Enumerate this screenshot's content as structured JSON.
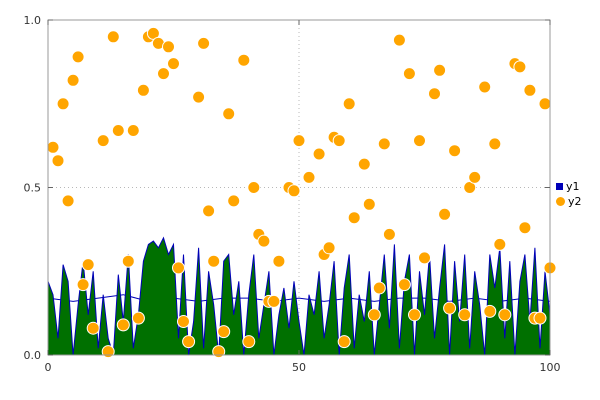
{
  "chart_data": {
    "type": "area",
    "title": "",
    "xlabel": "",
    "ylabel": "",
    "xlim": [
      0,
      100
    ],
    "ylim": [
      0.0,
      1.0
    ],
    "xticks": [
      0,
      50,
      100
    ],
    "xtick_labels": [
      "0",
      "50",
      "100"
    ],
    "yticks": [
      0.0,
      0.5,
      1.0
    ],
    "ytick_labels": [
      "0.0",
      "0.5",
      "1.0"
    ],
    "grid": true,
    "legend_position": "right",
    "colors": {
      "grid": "#b8b8b8",
      "border": "#999999",
      "tick_text": "#333333",
      "area_fill": "#007000",
      "area_stroke": "#0000b8",
      "line": "#0000b8",
      "scatter": "#FFA500"
    },
    "series": [
      {
        "name": "y1",
        "kind": "area",
        "fill": "#007000",
        "stroke": "#0000b8",
        "x_start": 0,
        "x_step": 1,
        "values": [
          0.22,
          0.18,
          0.05,
          0.27,
          0.22,
          0.0,
          0.15,
          0.28,
          0.12,
          0.25,
          0.02,
          0.18,
          0.05,
          0.0,
          0.24,
          0.1,
          0.3,
          0.02,
          0.12,
          0.28,
          0.33,
          0.34,
          0.32,
          0.35,
          0.3,
          0.33,
          0.05,
          0.3,
          0.0,
          0.1,
          0.32,
          0.02,
          0.25,
          0.15,
          0.0,
          0.28,
          0.3,
          0.12,
          0.22,
          0.0,
          0.18,
          0.3,
          0.05,
          0.15,
          0.25,
          0.0,
          0.12,
          0.2,
          0.08,
          0.22,
          0.1,
          0.0,
          0.18,
          0.12,
          0.25,
          0.05,
          0.15,
          0.28,
          0.0,
          0.2,
          0.3,
          0.02,
          0.18,
          0.1,
          0.25,
          0.0,
          0.15,
          0.3,
          0.08,
          0.33,
          0.02,
          0.22,
          0.3,
          0.0,
          0.25,
          0.12,
          0.3,
          0.05,
          0.2,
          0.33,
          0.0,
          0.28,
          0.1,
          0.3,
          0.02,
          0.25,
          0.15,
          0.0,
          0.3,
          0.2,
          0.32,
          0.05,
          0.28,
          0.0,
          0.22,
          0.3,
          0.1,
          0.32,
          0.02,
          0.25,
          0.12
        ],
        "line_x_step": 5,
        "line_values": [
          0.17,
          0.16,
          0.17,
          0.18,
          0.16,
          0.17,
          0.16,
          0.17,
          0.17,
          0.16,
          0.17,
          0.16,
          0.17,
          0.16,
          0.17,
          0.17,
          0.16,
          0.17,
          0.16,
          0.17,
          0.16
        ]
      },
      {
        "name": "y2",
        "kind": "scatter",
        "color": "#FFA500",
        "marker": "circle",
        "marker_size": 6,
        "points": [
          [
            1,
            0.62
          ],
          [
            2,
            0.58
          ],
          [
            3,
            0.75
          ],
          [
            4,
            0.46
          ],
          [
            5,
            0.82
          ],
          [
            6,
            0.89
          ],
          [
            7,
            0.21
          ],
          [
            8,
            0.27
          ],
          [
            9,
            0.08
          ],
          [
            11,
            0.64
          ],
          [
            12,
            0.01
          ],
          [
            13,
            0.95
          ],
          [
            14,
            0.67
          ],
          [
            15,
            0.09
          ],
          [
            16,
            0.28
          ],
          [
            17,
            0.67
          ],
          [
            18,
            0.11
          ],
          [
            19,
            0.79
          ],
          [
            20,
            0.95
          ],
          [
            21,
            0.96
          ],
          [
            22,
            0.93
          ],
          [
            23,
            0.84
          ],
          [
            24,
            0.92
          ],
          [
            25,
            0.87
          ],
          [
            26,
            0.26
          ],
          [
            27,
            0.1
          ],
          [
            28,
            0.04
          ],
          [
            30,
            0.77
          ],
          [
            31,
            0.93
          ],
          [
            32,
            0.43
          ],
          [
            33,
            0.28
          ],
          [
            34,
            0.01
          ],
          [
            35,
            0.07
          ],
          [
            36,
            0.72
          ],
          [
            37,
            0.46
          ],
          [
            39,
            0.88
          ],
          [
            40,
            0.04
          ],
          [
            41,
            0.5
          ],
          [
            42,
            0.36
          ],
          [
            43,
            0.34
          ],
          [
            44,
            0.16
          ],
          [
            45,
            0.16
          ],
          [
            46,
            0.28
          ],
          [
            48,
            0.5
          ],
          [
            49,
            0.49
          ],
          [
            50,
            0.64
          ],
          [
            52,
            0.53
          ],
          [
            54,
            0.6
          ],
          [
            55,
            0.3
          ],
          [
            56,
            0.32
          ],
          [
            57,
            0.65
          ],
          [
            58,
            0.64
          ],
          [
            59,
            0.04
          ],
          [
            60,
            0.75
          ],
          [
            61,
            0.41
          ],
          [
            63,
            0.57
          ],
          [
            64,
            0.45
          ],
          [
            65,
            0.12
          ],
          [
            66,
            0.2
          ],
          [
            67,
            0.63
          ],
          [
            68,
            0.36
          ],
          [
            70,
            0.94
          ],
          [
            71,
            0.21
          ],
          [
            72,
            0.84
          ],
          [
            73,
            0.12
          ],
          [
            74,
            0.64
          ],
          [
            75,
            0.29
          ],
          [
            77,
            0.78
          ],
          [
            78,
            0.85
          ],
          [
            79,
            0.42
          ],
          [
            80,
            0.14
          ],
          [
            81,
            0.61
          ],
          [
            83,
            0.12
          ],
          [
            84,
            0.5
          ],
          [
            85,
            0.53
          ],
          [
            87,
            0.8
          ],
          [
            88,
            0.13
          ],
          [
            89,
            0.63
          ],
          [
            90,
            0.33
          ],
          [
            91,
            0.12
          ],
          [
            93,
            0.87
          ],
          [
            94,
            0.86
          ],
          [
            95,
            0.38
          ],
          [
            96,
            0.79
          ],
          [
            97,
            0.11
          ],
          [
            98,
            0.11
          ],
          [
            99,
            0.75
          ],
          [
            100,
            0.26
          ]
        ]
      }
    ]
  }
}
